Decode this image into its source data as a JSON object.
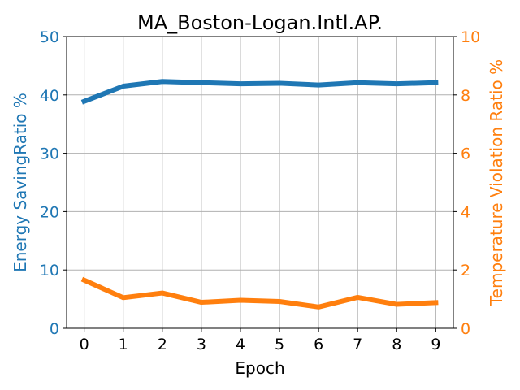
{
  "chart_data": {
    "type": "line",
    "title": "MA_Boston-Logan.Intl.AP.",
    "xlabel": "Epoch",
    "ylabel_left": "Energy SavingRatio %",
    "ylabel_right": "Temperature Violation Ratio %",
    "x": [
      0,
      1,
      2,
      3,
      4,
      5,
      6,
      7,
      8,
      9
    ],
    "xlim": [
      -0.45,
      9.45
    ],
    "ylim_left": [
      0,
      50
    ],
    "ylim_right": [
      0,
      10
    ],
    "yticks_left": [
      0,
      10,
      20,
      30,
      40,
      50
    ],
    "yticks_right": [
      0,
      2,
      4,
      6,
      8,
      10
    ],
    "grid": true,
    "series": [
      {
        "name": "Energy SavingRatio %",
        "axis": "left",
        "color": "#1f77b4",
        "values": [
          38.9,
          41.5,
          42.3,
          42.1,
          41.9,
          42.0,
          41.7,
          42.1,
          41.9,
          42.1
        ]
      },
      {
        "name": "Temperature Violation Ratio %",
        "axis": "right",
        "color": "#ff7f0e",
        "values": [
          1.65,
          1.05,
          1.21,
          0.89,
          0.96,
          0.92,
          0.73,
          1.06,
          0.82,
          0.88
        ]
      }
    ]
  }
}
